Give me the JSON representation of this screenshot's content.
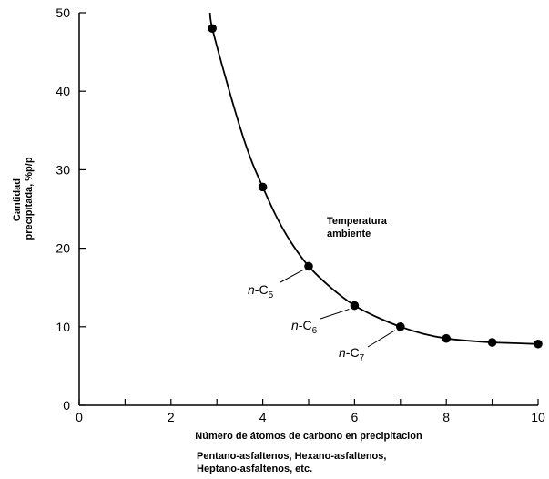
{
  "chart_data": {
    "type": "scatter",
    "title": "",
    "xlabel": "Número de átomos de carbono en precipitacion",
    "ylabel_lines": [
      "Cantidad",
      "precipitada, %p/p"
    ],
    "xlim": [
      0,
      10
    ],
    "ylim": [
      0,
      50
    ],
    "x_major_ticks": [
      0,
      2,
      4,
      6,
      8,
      10
    ],
    "x_minor_ticks": [
      1,
      3,
      5,
      7,
      9
    ],
    "y_ticks": [
      0,
      10,
      20,
      30,
      40,
      50
    ],
    "grid": false,
    "legend": "none",
    "series": [
      {
        "points": [
          {
            "x": 2.9,
            "y": 48.0
          },
          {
            "x": 4.0,
            "y": 27.8
          },
          {
            "x": 5.0,
            "y": 17.7
          },
          {
            "x": 6.0,
            "y": 12.7
          },
          {
            "x": 7.0,
            "y": 10.0
          },
          {
            "x": 8.0,
            "y": 8.5
          },
          {
            "x": 9.0,
            "y": 8.0
          },
          {
            "x": 10.0,
            "y": 7.8
          }
        ],
        "curve": [
          {
            "x": 2.85,
            "y": 50.0
          },
          {
            "x": 2.9,
            "y": 48.0
          },
          {
            "x": 3.2,
            "y": 41.5
          },
          {
            "x": 3.5,
            "y": 35.5
          },
          {
            "x": 3.75,
            "y": 31.2
          },
          {
            "x": 4.0,
            "y": 27.8
          },
          {
            "x": 4.3,
            "y": 24.0
          },
          {
            "x": 4.6,
            "y": 20.9
          },
          {
            "x": 5.0,
            "y": 17.7
          },
          {
            "x": 5.5,
            "y": 14.9
          },
          {
            "x": 6.0,
            "y": 12.7
          },
          {
            "x": 6.5,
            "y": 11.2
          },
          {
            "x": 7.0,
            "y": 10.0
          },
          {
            "x": 7.5,
            "y": 9.1
          },
          {
            "x": 8.0,
            "y": 8.5
          },
          {
            "x": 8.5,
            "y": 8.2
          },
          {
            "x": 9.0,
            "y": 8.0
          },
          {
            "x": 9.5,
            "y": 7.9
          },
          {
            "x": 10.0,
            "y": 7.8
          }
        ]
      }
    ],
    "annotations": [
      {
        "lines": [
          "Temperatura",
          "ambiente"
        ]
      },
      {
        "text": "n-C",
        "sub": "5",
        "target": {
          "x": 5.0,
          "y": 17.7
        }
      },
      {
        "text": "n-C",
        "sub": "6",
        "target": {
          "x": 6.0,
          "y": 12.7
        }
      },
      {
        "text": "n-C",
        "sub": "7",
        "target": {
          "x": 7.0,
          "y": 10.0
        }
      }
    ],
    "caption_lines": [
      "Pentano-asfaltenos, Hexano-asfaltenos,",
      "Heptano-asfaltenos, etc."
    ]
  }
}
